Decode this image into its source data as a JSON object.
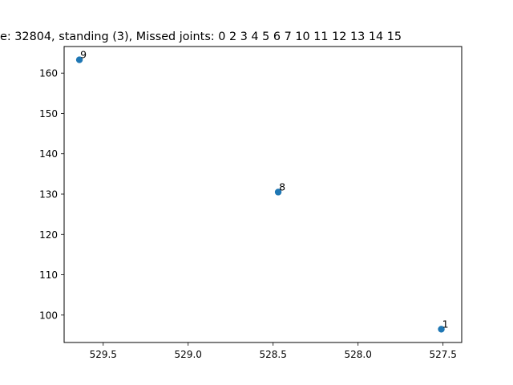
{
  "chart_data": {
    "type": "scatter",
    "title": "e: 32804, standing (3), Missed joints: 0  2  3  4  5  6  7  10  11  12  13  14  15",
    "xlabel": "",
    "ylabel": "",
    "xlim": [
      529.73,
      527.39
    ],
    "ylim": [
      166.6,
      93.2
    ],
    "x_inverted": true,
    "y_inverted": true,
    "grid": false,
    "legend": "none",
    "xticks": [
      529.5,
      529.0,
      528.5,
      528.0,
      527.5
    ],
    "xtick_labels": [
      "529.5",
      "529.0",
      "528.5",
      "528.0",
      "527.5"
    ],
    "yticks": [
      100,
      110,
      120,
      130,
      140,
      150,
      160
    ],
    "ytick_labels": [
      "100",
      "110",
      "120",
      "130",
      "140",
      "150",
      "160"
    ],
    "points": [
      {
        "label": "1",
        "x": 527.51,
        "y": 96.5
      },
      {
        "label": "8",
        "x": 528.47,
        "y": 130.5
      },
      {
        "label": "9",
        "x": 529.64,
        "y": 163.3
      }
    ],
    "marker_color": "#1f77b4"
  }
}
